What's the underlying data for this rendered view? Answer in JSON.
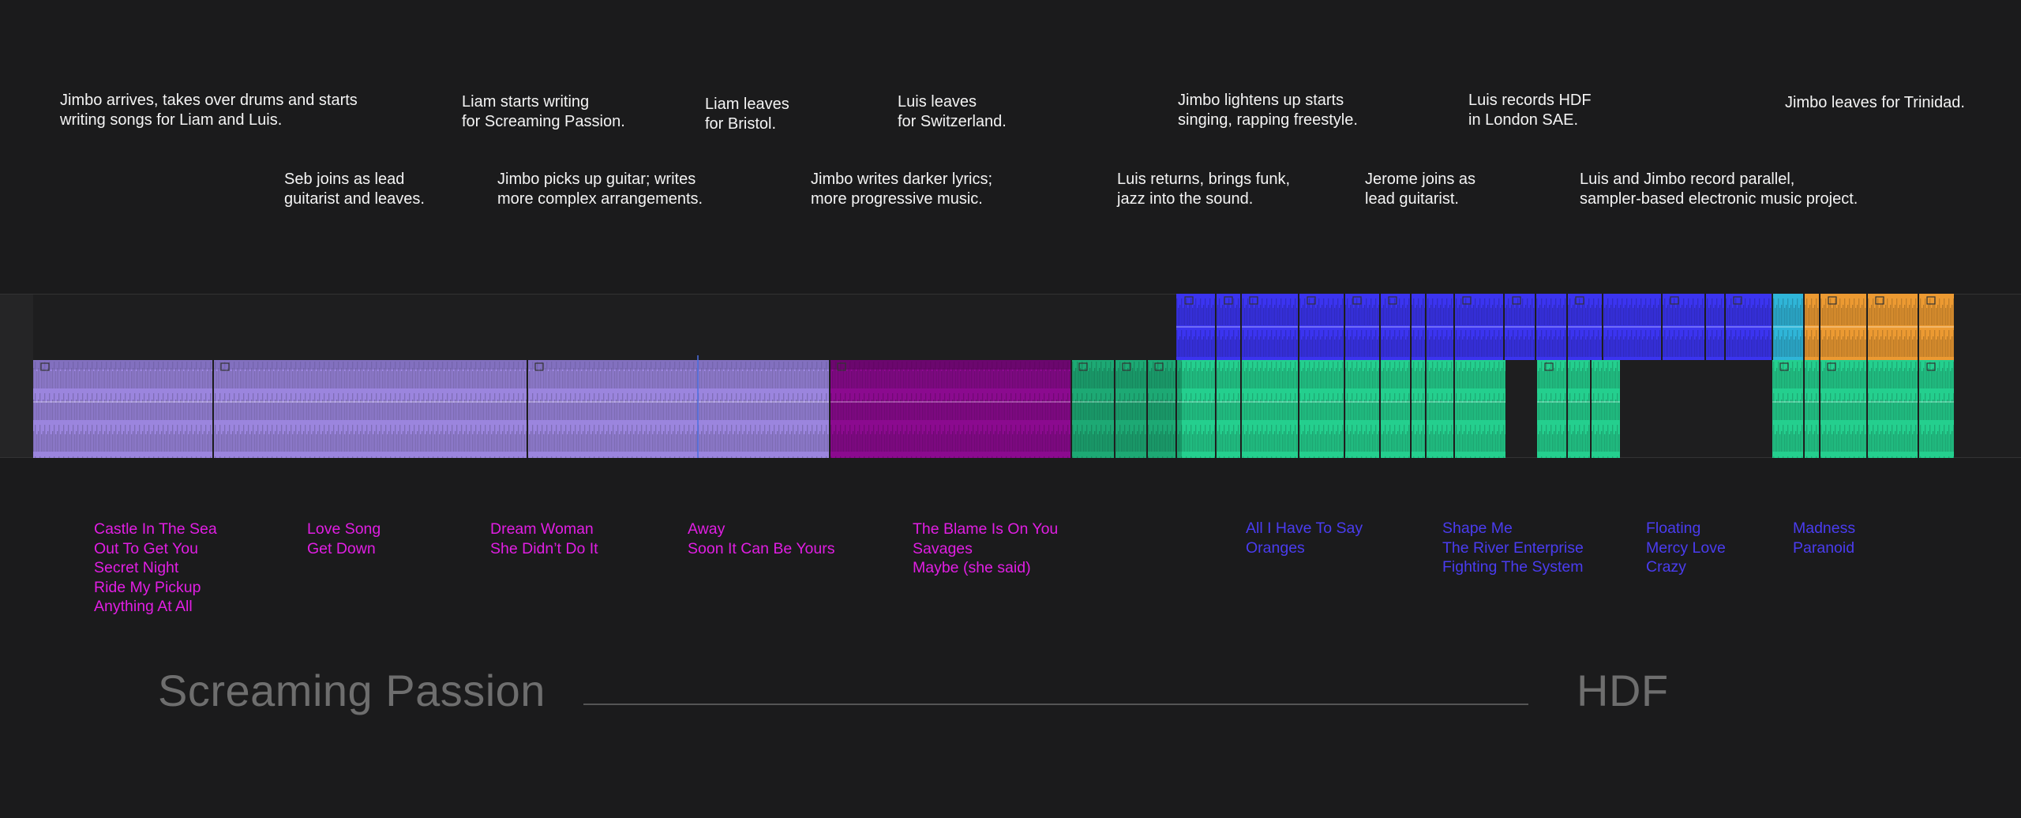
{
  "annotations": {
    "top": [
      {
        "id": "jimbo-arrives",
        "text": "Jimbo arrives, takes over drums and starts\nwriting songs for Liam and Luis."
      },
      {
        "id": "liam-writing",
        "text": "Liam starts writing\nfor Screaming Passion."
      },
      {
        "id": "liam-leaves",
        "text": "Liam leaves\nfor Bristol."
      },
      {
        "id": "luis-leaves",
        "text": "Luis leaves\nfor Switzerland."
      },
      {
        "id": "jimbo-lightens",
        "text": "Jimbo lightens up starts\nsinging, rapping freestyle."
      },
      {
        "id": "luis-records",
        "text": "Luis records HDF\nin London SAE."
      },
      {
        "id": "jimbo-trinidad",
        "text": "Jimbo leaves for Trinidad."
      }
    ],
    "bottom": [
      {
        "id": "seb-joins",
        "text": "Seb joins as lead\nguitarist and leaves."
      },
      {
        "id": "jimbo-guitar",
        "text": "Jimbo picks up guitar; writes\nmore complex arrangements."
      },
      {
        "id": "jimbo-darker",
        "text": "Jimbo writes darker lyrics;\nmore progressive music."
      },
      {
        "id": "luis-returns",
        "text": "Luis returns, brings funk,\njazz into the sound."
      },
      {
        "id": "jerome-joins",
        "text": "Jerome joins as\nlead guitarist."
      },
      {
        "id": "luis-jimbo-record",
        "text": "Luis and Jimbo record parallel,\nsampler-based electronic music project."
      }
    ]
  },
  "songs": [
    {
      "color": "magenta",
      "items": [
        "Castle In The Sea",
        "Out To Get You",
        "Secret Night",
        "Ride My Pickup",
        "Anything At All"
      ]
    },
    {
      "color": "magenta",
      "items": [
        "Love Song",
        "Get Down"
      ]
    },
    {
      "color": "magenta",
      "items": [
        "Dream Woman",
        "She Didn’t Do It"
      ]
    },
    {
      "color": "magenta",
      "items": [
        "Away",
        "Soon It Can Be Yours"
      ]
    },
    {
      "color": "magenta",
      "items": [
        "The Blame Is On You",
        "Savages",
        "Maybe (she said)"
      ]
    },
    {
      "color": "blue",
      "items": [
        "All I Have To Say",
        "Oranges"
      ]
    },
    {
      "color": "blue",
      "items": [
        "Shape Me",
        "The River Enterprise",
        "Fighting The System"
      ]
    },
    {
      "color": "blue",
      "items": [
        "Floating",
        "Mercy Love",
        "Crazy"
      ]
    },
    {
      "color": "blue",
      "items": [
        "Madness",
        "Paranoid"
      ]
    }
  ],
  "bands": {
    "left": "Screaming Passion",
    "right": "HDF"
  },
  "colors": {
    "lavender": "#9b85de",
    "purple": "#8b0a8f",
    "green": "#24cf8e",
    "blue": "#3b34f0",
    "cyan": "#2fb5d8",
    "orange": "#ec9a32",
    "magenta_text": "#e11ee3",
    "blue_text": "#4a3cf0"
  }
}
